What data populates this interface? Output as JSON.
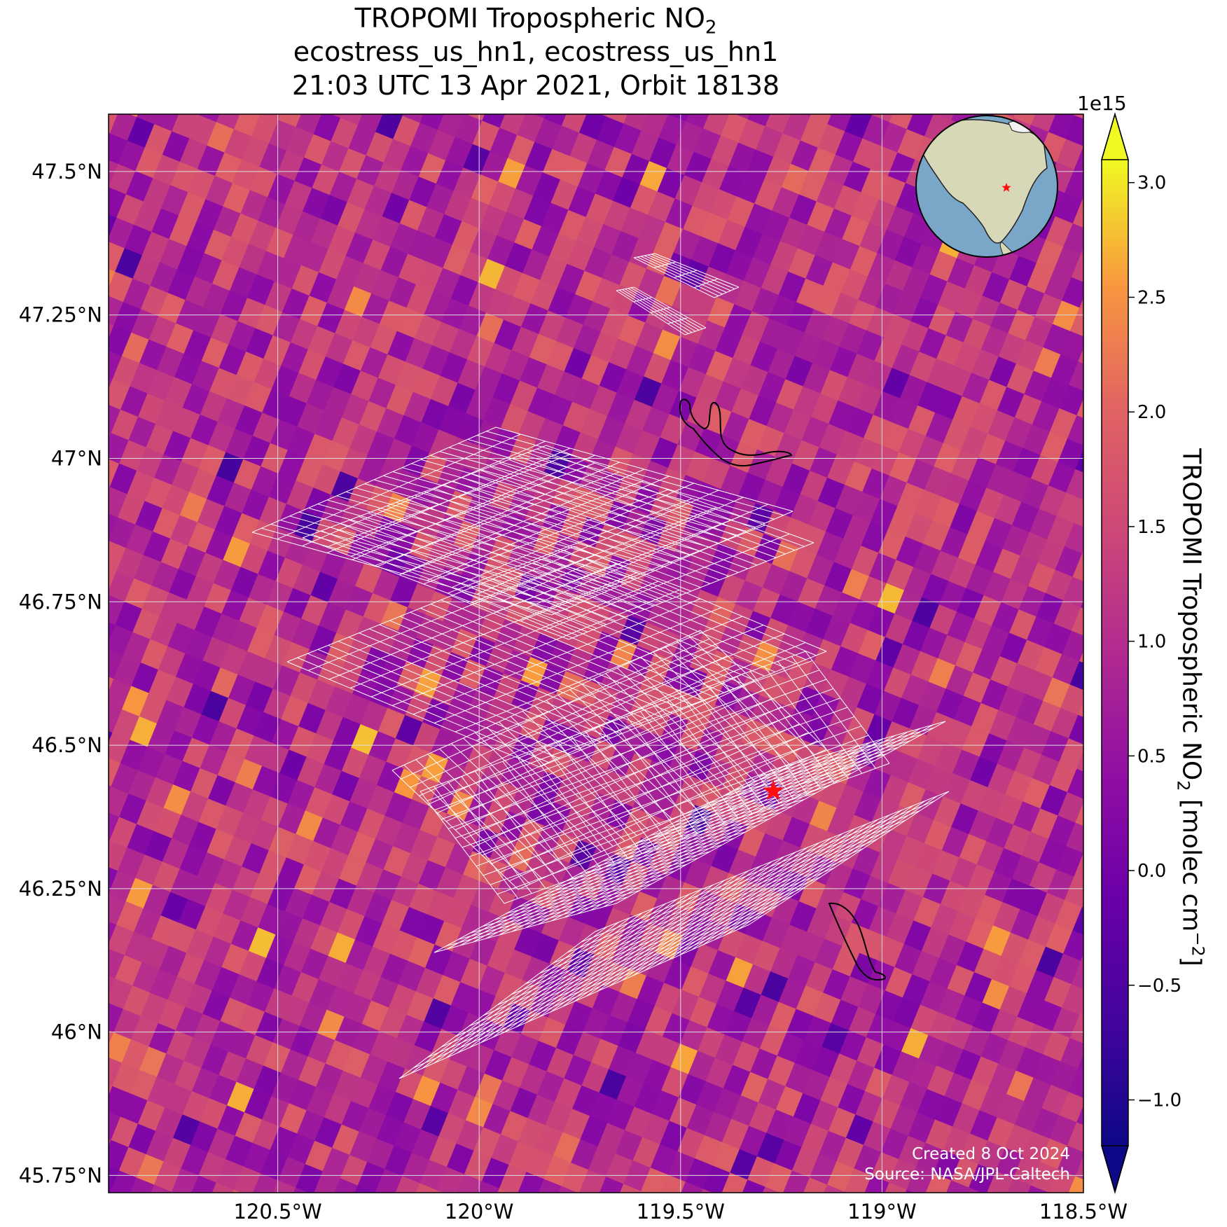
{
  "title": {
    "line1_prefix": "TROPOMI Tropospheric NO",
    "line1_sub": "2",
    "line2": "ecostress_us_hn1, ecostress_us_hn1",
    "line3": "21:03 UTC 13 Apr 2021, Orbit 18138"
  },
  "colorbar": {
    "exponent": "1e15",
    "ticks": [
      "3.0",
      "2.5",
      "2.0",
      "1.5",
      "1.0",
      "0.5",
      "0.0",
      "−0.5",
      "−1.0"
    ],
    "tick_values": [
      3.0,
      2.5,
      2.0,
      1.5,
      1.0,
      0.5,
      0.0,
      -0.5,
      -1.0
    ],
    "range": [
      -1.2,
      3.1
    ],
    "colormap": "plasma",
    "label_prefix": "TROPOMI Tropospheric NO",
    "label_sub": "2",
    "label_units": " [molec cm",
    "label_sup": "−2",
    "label_close": "]"
  },
  "axes": {
    "lat_ticks": [
      "47.5°N",
      "47.25°N",
      "47°N",
      "46.75°N",
      "46.5°N",
      "46.25°N",
      "46°N",
      "45.75°N"
    ],
    "lat_values": [
      47.5,
      47.25,
      47.0,
      46.75,
      46.5,
      46.25,
      46.0,
      45.75
    ],
    "lon_ticks": [
      "120.5°W",
      "120°W",
      "119.5°W",
      "119°W",
      "118.5°W"
    ],
    "lon_values": [
      -120.5,
      -120.0,
      -119.5,
      -119.0,
      -118.5
    ],
    "lat_range": [
      45.72,
      47.6
    ],
    "lon_range": [
      -120.92,
      -118.5
    ]
  },
  "markers": {
    "site": {
      "lat": 46.42,
      "lon": -119.27,
      "color": "#ff0000"
    }
  },
  "credits": {
    "created": "Created 8 Oct 2024",
    "source": "Source: NASA/JPL-Caltech"
  },
  "colors": {
    "grid": "#dddddd",
    "overlay_grid": "#ffffff",
    "globe_ocean": "#7aa7c7",
    "globe_land": "#d6d8b8"
  }
}
